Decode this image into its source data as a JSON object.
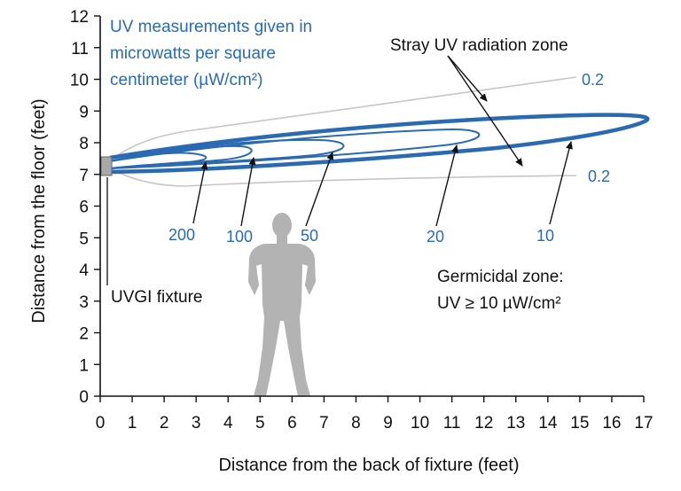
{
  "colors": {
    "accent": "#2a6ab3",
    "person": "#b3b3b3",
    "stray_contour": "#c6c6c6",
    "fixture": "#a8a8a8",
    "ink": "#111111"
  },
  "chart_data": {
    "type": "diagram",
    "xlabel": "Distance from the back of fixture (feet)",
    "ylabel": "Distance from the floor (feet)",
    "xlim": [
      0,
      17
    ],
    "ylim": [
      0,
      12
    ],
    "x_ticks": [
      "0",
      "1",
      "2",
      "3",
      "4",
      "5",
      "6",
      "7",
      "8",
      "9",
      "10",
      "11",
      "12",
      "13",
      "14",
      "15",
      "16",
      "17"
    ],
    "y_ticks": [
      "0",
      "1",
      "2",
      "3",
      "4",
      "5",
      "6",
      "7",
      "8",
      "9",
      "10",
      "11",
      "12"
    ],
    "fixture": {
      "x": 0.25,
      "y": 7.25
    },
    "contours": [
      {
        "level": "200",
        "reach_ft": 3.5
      },
      {
        "level": "100",
        "reach_ft": 5.0
      },
      {
        "level": "50",
        "reach_ft": 7.6
      },
      {
        "level": "20",
        "reach_ft": 12.1
      },
      {
        "level": "10",
        "reach_ft": 17.0
      },
      {
        "level": "0.2",
        "reach_ft": 15.0
      }
    ]
  },
  "texts": {
    "measurements_note": [
      "UV measurements given in",
      "microwatts per square",
      "centimeter (µW/cm²)"
    ],
    "stray_zone": "Stray UV radiation zone",
    "germicidal_title": "Germicidal zone:",
    "germicidal_value": "UV ≥ 10 µW/cm²",
    "fixture_label": "UVGI fixture",
    "labels": {
      "l200": "200",
      "l100": "100",
      "l50": "50",
      "l20": "20",
      "l10": "10",
      "l02_top": "0.2",
      "l02_bottom": "0.2"
    }
  }
}
